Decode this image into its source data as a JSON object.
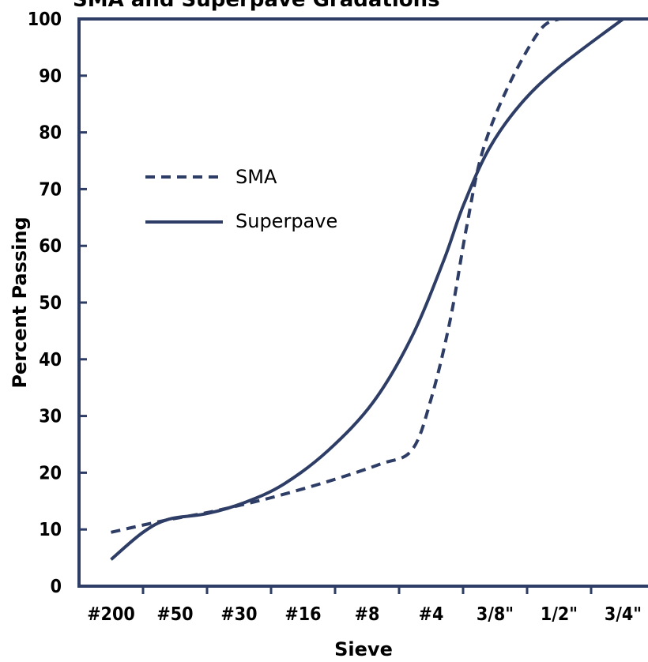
{
  "chart_data": {
    "type": "line",
    "title": "SMA and Superpave Gradations",
    "xlabel": "Sieve",
    "ylabel": "Percent Passing",
    "ylim": [
      0,
      100
    ],
    "y_ticks": [
      0,
      10,
      20,
      30,
      40,
      50,
      60,
      70,
      80,
      90,
      100
    ],
    "categories": [
      "#200",
      "#50",
      "#30",
      "#16",
      "#8",
      "#4",
      "3/8\"",
      "1/2\"",
      "3/4\""
    ],
    "grid": false,
    "legend_position": "upper-left",
    "series": [
      {
        "name": "SMA",
        "style": "dashed",
        "color": "#2e3d66",
        "points": [
          [
            0.5,
            9.5
          ],
          [
            1.3,
            11.5
          ],
          [
            2.1,
            13.2
          ],
          [
            3.0,
            15.6
          ],
          [
            3.9,
            18.5
          ],
          [
            4.7,
            21.5
          ],
          [
            5.2,
            24
          ],
          [
            5.5,
            33
          ],
          [
            5.8,
            47
          ],
          [
            6.05,
            63
          ],
          [
            6.3,
            76.5
          ],
          [
            6.7,
            88
          ],
          [
            7.2,
            98
          ],
          [
            7.5,
            100
          ]
        ]
      },
      {
        "name": "Superpave",
        "style": "solid",
        "color": "#2e3d66",
        "points": [
          [
            0.5,
            4.7
          ],
          [
            1.0,
            9.5
          ],
          [
            1.4,
            11.8
          ],
          [
            2.0,
            12.8
          ],
          [
            2.6,
            14.8
          ],
          [
            3.2,
            18.0
          ],
          [
            3.9,
            24.0
          ],
          [
            4.6,
            32.5
          ],
          [
            5.2,
            44.0
          ],
          [
            5.7,
            57.5
          ],
          [
            6.0,
            67.0
          ],
          [
            6.4,
            77.0
          ],
          [
            6.9,
            85.0
          ],
          [
            7.5,
            91.5
          ],
          [
            8.5,
            100.0
          ]
        ]
      }
    ]
  }
}
